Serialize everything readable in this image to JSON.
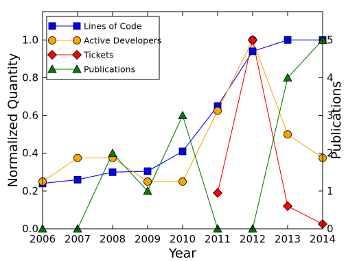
{
  "chart_data": {
    "type": "line",
    "title": "",
    "xlabel": "Year",
    "ylabel": "Normalized Quantity",
    "y2label": "Publications",
    "x": [
      2006,
      2007,
      2008,
      2009,
      2010,
      2011,
      2012,
      2013,
      2014
    ],
    "xlim": [
      2006,
      2014
    ],
    "ylim": [
      0,
      1.15
    ],
    "y2lim": [
      0,
      5.75
    ],
    "x_ticks": [
      "2006",
      "2007",
      "2008",
      "2009",
      "2010",
      "2011",
      "2012",
      "2013",
      "2014"
    ],
    "y_ticks": [
      "0.0",
      "0.2",
      "0.4",
      "0.6",
      "0.8",
      "1.0"
    ],
    "y2_ticks": [
      "0",
      "1",
      "2",
      "3",
      "4",
      "5"
    ],
    "grid": false,
    "legend_position": "top-left",
    "series": [
      {
        "name": "Lines of Code",
        "axis": "left",
        "color": "#0000ff",
        "marker": "square",
        "x": [
          2006,
          2007,
          2008,
          2009,
          2010,
          2011,
          2012,
          2013,
          2014
        ],
        "values": [
          0.24,
          0.26,
          0.3,
          0.305,
          0.41,
          0.65,
          0.94,
          1.0,
          1.0
        ]
      },
      {
        "name": "Active Developers",
        "axis": "left",
        "color": "#ffa500",
        "marker": "circle",
        "x": [
          2006,
          2007,
          2008,
          2009,
          2010,
          2011,
          2012,
          2013,
          2014
        ],
        "values": [
          0.25,
          0.375,
          0.375,
          0.25,
          0.25,
          0.625,
          1.0,
          0.5,
          0.375
        ]
      },
      {
        "name": "Tickets",
        "axis": "left",
        "color": "#ff0000",
        "marker": "diamond",
        "x": [
          2011,
          2012,
          2013,
          2014
        ],
        "values": [
          0.19,
          1.0,
          0.12,
          0.025
        ]
      },
      {
        "name": "Publications",
        "axis": "right",
        "color": "#008000",
        "marker": "triangle",
        "x": [
          2006,
          2007,
          2008,
          2009,
          2010,
          2011,
          2012,
          2013,
          2014
        ],
        "values": [
          0,
          0,
          2,
          1,
          3,
          0,
          0,
          4,
          5
        ]
      }
    ]
  }
}
